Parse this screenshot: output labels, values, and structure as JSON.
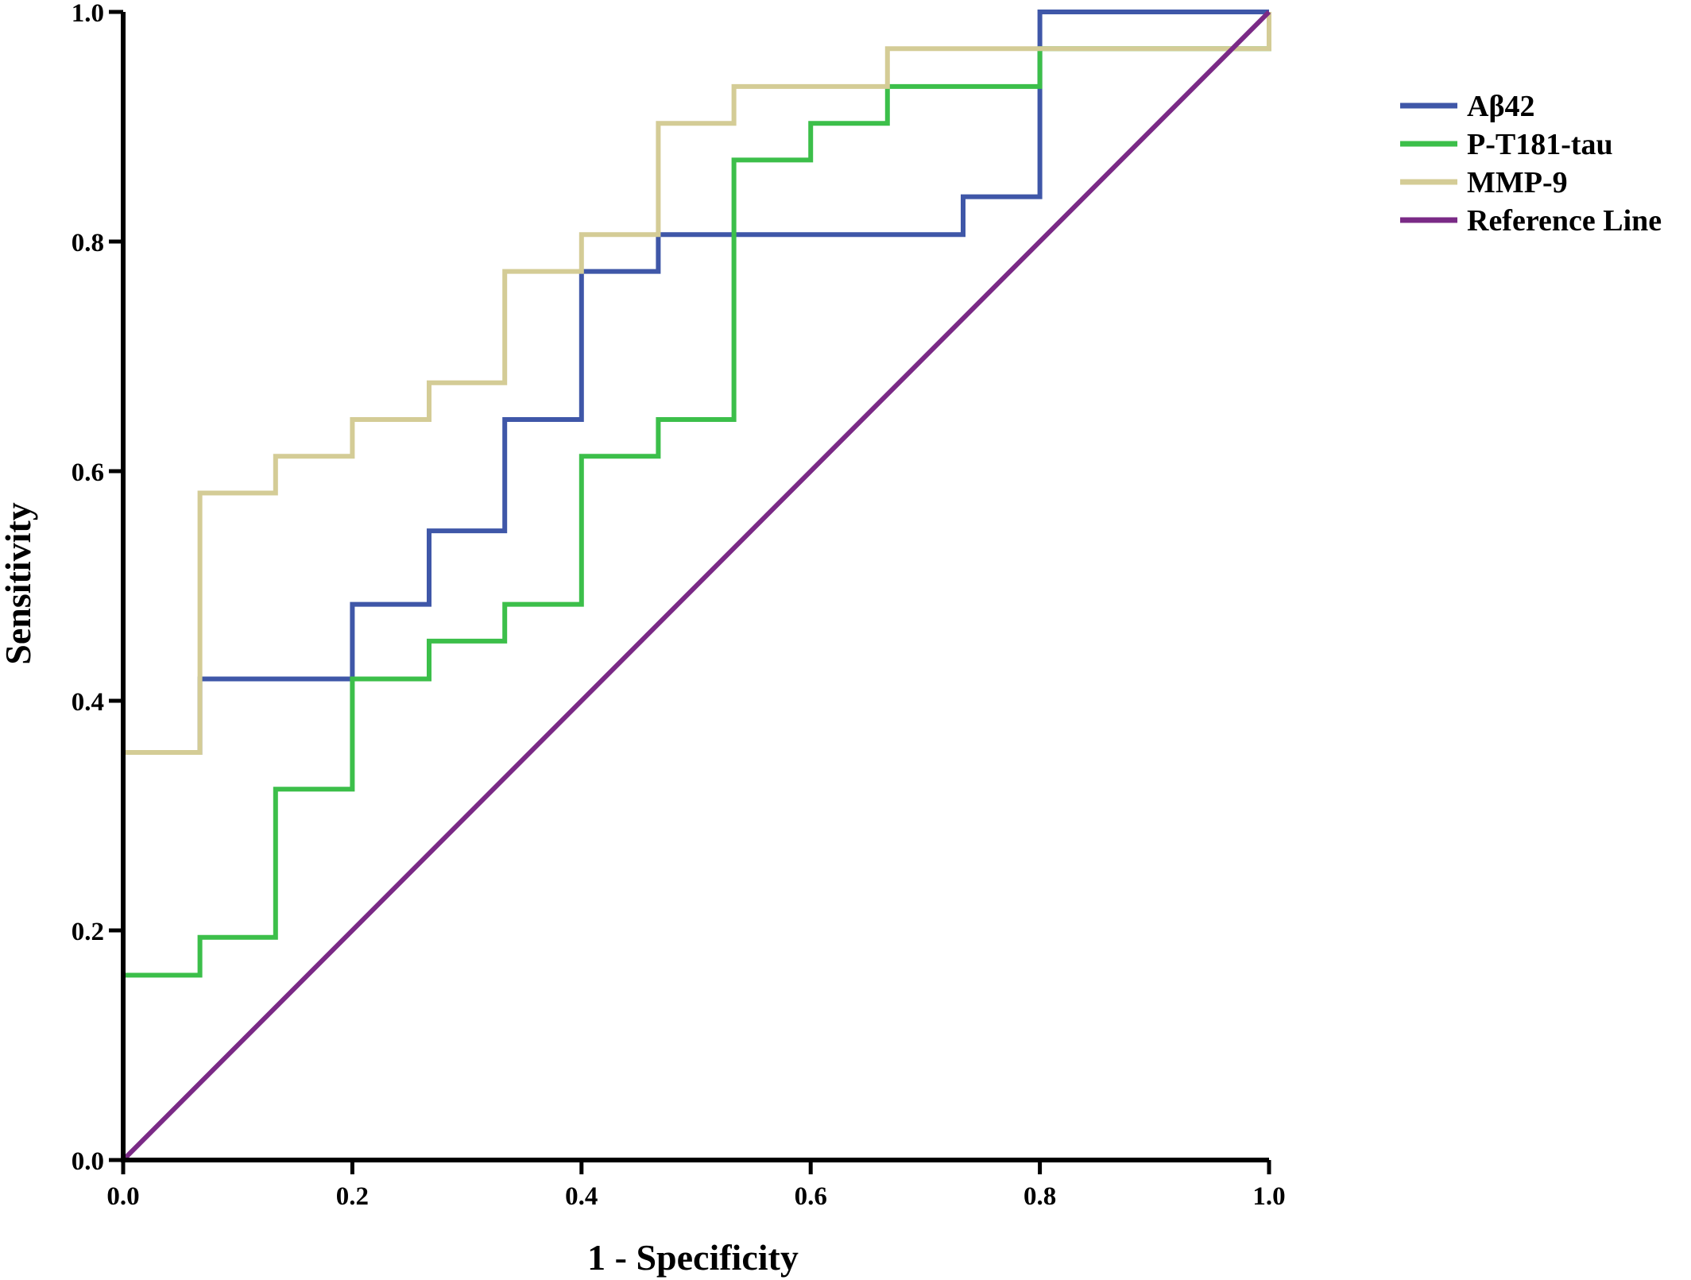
{
  "chart_data": {
    "type": "line",
    "title": "",
    "xlabel": "1 - Specificity",
    "ylabel": "Sensitivity",
    "xlim": [
      0,
      1
    ],
    "ylim": [
      0,
      1
    ],
    "xticks": [
      "0.0",
      "0.2",
      "0.4",
      "0.6",
      "0.8",
      "1.0"
    ],
    "yticks": [
      "0.0",
      "0.2",
      "0.4",
      "0.6",
      "0.8",
      "1.0"
    ],
    "grid": false,
    "legend_position": "top-right, outside plot",
    "series": [
      {
        "name": "Aβ42",
        "color": "#3f57a8",
        "x": [
          0,
          0,
          0.067,
          0.067,
          0.2,
          0.2,
          0.267,
          0.267,
          0.333,
          0.333,
          0.4,
          0.4,
          0.467,
          0.467,
          0.733,
          0.733,
          0.8,
          0.8,
          1.0
        ],
        "y": [
          0,
          0.355,
          0.355,
          0.419,
          0.419,
          0.484,
          0.484,
          0.548,
          0.548,
          0.645,
          0.645,
          0.774,
          0.774,
          0.806,
          0.806,
          0.839,
          0.839,
          1.0,
          1.0
        ]
      },
      {
        "name": "P-T181-tau",
        "color": "#3cbf4a",
        "x": [
          0,
          0,
          0.067,
          0.067,
          0.133,
          0.133,
          0.2,
          0.2,
          0.267,
          0.267,
          0.333,
          0.333,
          0.4,
          0.4,
          0.467,
          0.467,
          0.533,
          0.533,
          0.6,
          0.6,
          0.667,
          0.667,
          0.8,
          0.8,
          1.0,
          1.0
        ],
        "y": [
          0,
          0.161,
          0.161,
          0.194,
          0.194,
          0.323,
          0.323,
          0.419,
          0.419,
          0.452,
          0.452,
          0.484,
          0.484,
          0.613,
          0.613,
          0.645,
          0.645,
          0.871,
          0.871,
          0.903,
          0.903,
          0.935,
          0.935,
          0.968,
          0.968,
          1.0
        ]
      },
      {
        "name": "MMP-9",
        "color": "#d4cc96",
        "x": [
          0,
          0,
          0.067,
          0.067,
          0.133,
          0.133,
          0.2,
          0.2,
          0.267,
          0.267,
          0.333,
          0.333,
          0.4,
          0.4,
          0.467,
          0.467,
          0.533,
          0.533,
          0.667,
          0.667,
          1.0,
          1.0
        ],
        "y": [
          0,
          0.355,
          0.355,
          0.581,
          0.581,
          0.613,
          0.613,
          0.645,
          0.645,
          0.677,
          0.677,
          0.774,
          0.774,
          0.806,
          0.806,
          0.903,
          0.903,
          0.935,
          0.935,
          0.968,
          0.968,
          1.0
        ]
      },
      {
        "name": "Reference Line",
        "color": "#7a2a86",
        "x": [
          0,
          1
        ],
        "y": [
          0,
          1
        ]
      }
    ]
  }
}
